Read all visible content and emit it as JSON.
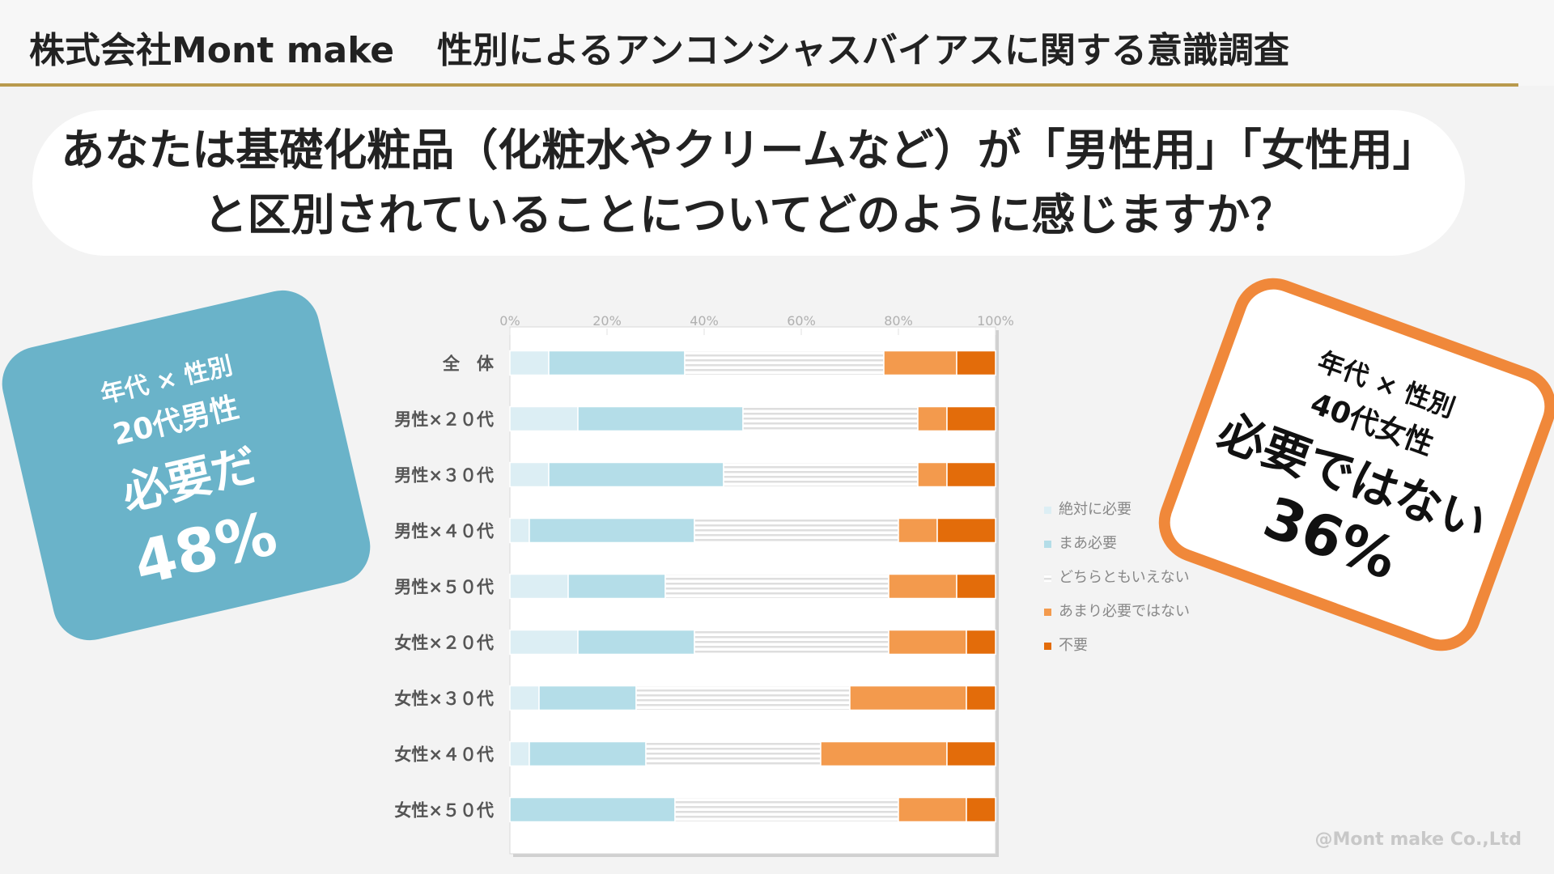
{
  "header": {
    "company": "株式会社Mont make",
    "survey_title": "性別によるアンコンシャスバイアスに関する意識調査"
  },
  "question": "あなたは基礎化粧品（化粧水やクリームなど）が「男性用」「女性用」と区別されていることについてどのように感じますか？",
  "callout_left": {
    "line1": "年代 × 性別",
    "line2": "20代男性",
    "line3": "必要だ",
    "line4": "48%"
  },
  "callout_right": {
    "line1": "年代 × 性別",
    "line2": "40代女性",
    "line3": "必要ではない",
    "line4": "36%"
  },
  "copyright": "@Mont make Co.,Ltd",
  "colors": {
    "zettai": "#dceef4",
    "maa": "#b4dde8",
    "dochira": "#ededed",
    "amari": "#f39a4d",
    "fuyou": "#e36c0a"
  },
  "chart_data": {
    "type": "bar",
    "orientation": "horizontal",
    "stacked": "percent",
    "categories": [
      "全　体",
      "男性×２０代",
      "男性×３０代",
      "男性×４０代",
      "男性×５０代",
      "女性×２０代",
      "女性×３０代",
      "女性×４０代",
      "女性×５０代"
    ],
    "series": [
      {
        "name": "絶対に必要",
        "color": "#dceef4",
        "values": [
          8,
          14,
          8,
          4,
          12,
          14,
          6,
          4,
          0
        ]
      },
      {
        "name": "まあ必要",
        "color": "#b4dde8",
        "values": [
          28,
          34,
          36,
          34,
          20,
          24,
          20,
          24,
          34
        ]
      },
      {
        "name": "どちらともいえない",
        "color": "#ededed",
        "values": [
          41,
          36,
          40,
          42,
          46,
          40,
          44,
          36,
          46
        ]
      },
      {
        "name": "あまり必要ではない",
        "color": "#f39a4d",
        "values": [
          15,
          6,
          6,
          8,
          14,
          16,
          24,
          26,
          14
        ]
      },
      {
        "name": "不要",
        "color": "#e36c0a",
        "values": [
          8,
          10,
          10,
          12,
          8,
          6,
          6,
          10,
          6
        ]
      }
    ],
    "x_ticks": [
      "0%",
      "20%",
      "40%",
      "60%",
      "80%",
      "100%"
    ],
    "xlim": [
      0,
      100
    ],
    "legend_position": "right"
  }
}
